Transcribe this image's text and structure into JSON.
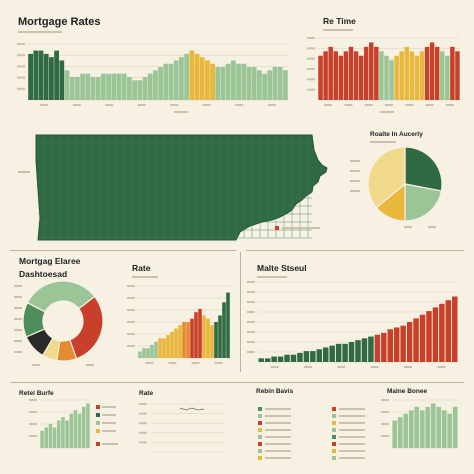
{
  "colors": {
    "dark_green": "#2f6a43",
    "mid_green": "#4f8d5b",
    "light_green": "#9cc597",
    "yellow": "#e8b73c",
    "orange": "#e58a2e",
    "red": "#c9402a",
    "grid": "#ddd6bf",
    "map": "#2f6a43"
  },
  "header": {
    "main_title": "Mortgage Rates",
    "rt_title": "Re Time",
    "donut_title": "Roalte In Aucerly",
    "mid_left_title_1": "Mortgag Elaree",
    "mid_left_title_2": "Dashtoesad",
    "rate_title": "Rate",
    "malte_title": "Malte Stseul",
    "bl_title": "Retel Burfe",
    "rate2_title": "Rate",
    "rebin_title": "Rebin Bavis",
    "br_title": "Malne Bonee"
  },
  "chart_data": [
    {
      "id": "main-bars",
      "type": "bar",
      "title": "Mortgage Rates",
      "values": [
        14,
        15,
        15,
        14,
        13,
        15,
        12,
        9,
        7,
        7,
        8,
        8,
        7,
        7,
        8,
        8,
        8,
        8,
        8,
        7,
        6,
        6,
        7,
        8,
        9,
        10,
        11,
        11,
        12,
        13,
        14,
        15,
        14,
        13,
        12,
        11,
        10,
        10,
        11,
        12,
        11,
        11,
        10,
        10,
        9,
        8,
        9,
        10,
        10,
        9
      ],
      "colors": [
        "dg",
        "dg",
        "dg",
        "dg",
        "dg",
        "dg",
        "dg",
        "lg",
        "lg",
        "lg",
        "lg",
        "lg",
        "lg",
        "lg",
        "lg",
        "lg",
        "lg",
        "lg",
        "lg",
        "lg",
        "lg",
        "lg",
        "lg",
        "lg",
        "lg",
        "lg",
        "lg",
        "lg",
        "lg",
        "lg",
        "lg",
        "y",
        "y",
        "y",
        "y",
        "y",
        "lg",
        "lg",
        "lg",
        "lg",
        "lg",
        "lg",
        "lg",
        "lg",
        "lg",
        "lg",
        "lg",
        "lg",
        "lg",
        "lg"
      ],
      "ylim": [
        0,
        17
      ]
    },
    {
      "id": "rt-bars",
      "type": "bar",
      "title": "Re Time",
      "values": [
        10,
        11,
        12,
        11,
        10,
        11,
        12,
        11,
        10,
        12,
        13,
        12,
        11,
        10,
        9,
        10,
        11,
        12,
        11,
        10,
        11,
        12,
        13,
        12,
        11,
        10,
        12,
        11
      ],
      "colors": [
        "r",
        "r",
        "r",
        "r",
        "r",
        "r",
        "r",
        "r",
        "r",
        "r",
        "r",
        "r",
        "lg",
        "lg",
        "lg",
        "y",
        "y",
        "y",
        "y",
        "y",
        "y",
        "r",
        "r",
        "r",
        "lg",
        "lg",
        "r",
        "r"
      ],
      "ylim": [
        0,
        14
      ]
    },
    {
      "id": "pie",
      "type": "pie",
      "title": "Roalte In Aucerly",
      "values": [
        28,
        22,
        14,
        36
      ],
      "colors": [
        "#2f6a43",
        "#9cc597",
        "#e8b73c",
        "#f0d98a"
      ]
    },
    {
      "id": "donut",
      "type": "pie",
      "values": [
        32,
        30,
        8,
        6,
        10,
        14
      ],
      "colors": [
        "#9cc597",
        "#c9402a",
        "#e58a2e",
        "#f0d98a",
        "#2a2a2a",
        "#4f8d5b"
      ]
    },
    {
      "id": "rate-bars",
      "type": "bar",
      "title": "Rate",
      "values": [
        2,
        3,
        3,
        4,
        5,
        6,
        6,
        7,
        8,
        9,
        10,
        11,
        11,
        12,
        14,
        15,
        13,
        12,
        10,
        11,
        13,
        17,
        20
      ],
      "colors": [
        "lg",
        "lg",
        "lg",
        "lg",
        "lg",
        "y",
        "y",
        "y",
        "y",
        "y",
        "y",
        "o",
        "o",
        "r",
        "r",
        "r",
        "y",
        "y",
        "y",
        "dg",
        "dg",
        "dg",
        "dg"
      ],
      "ylim": [
        0,
        22
      ]
    },
    {
      "id": "malte-bars",
      "type": "bar",
      "title": "Malte Stseul",
      "values": [
        1,
        1,
        1.5,
        1.5,
        2,
        2,
        2.5,
        3,
        3,
        3.5,
        4,
        4.5,
        5,
        5,
        5.5,
        6,
        6.5,
        7,
        7.5,
        8,
        9,
        9.5,
        10,
        11,
        12,
        13,
        14,
        15,
        16,
        17,
        18
      ],
      "colors": [
        "dg",
        "dg",
        "dg",
        "dg",
        "dg",
        "dg",
        "dg",
        "dg",
        "dg",
        "dg",
        "dg",
        "dg",
        "dg",
        "dg",
        "dg",
        "dg",
        "dg",
        "dg",
        "r",
        "r",
        "r",
        "r",
        "r",
        "r",
        "r",
        "r",
        "r",
        "r",
        "r",
        "r",
        "r"
      ],
      "ylim": [
        0,
        22
      ]
    },
    {
      "id": "bl-bars",
      "type": "bar",
      "title": "Retel Burfe",
      "values": [
        5,
        6,
        7,
        6,
        8,
        9,
        8,
        10,
        11,
        10,
        12,
        13
      ],
      "colors": [
        "lg",
        "lg",
        "lg",
        "lg",
        "lg",
        "lg",
        "lg",
        "lg",
        "lg",
        "lg",
        "lg",
        "lg"
      ],
      "ylim": [
        0,
        14
      ]
    },
    {
      "id": "br-bars",
      "type": "bar",
      "title": "Malne Bonee",
      "values": [
        8,
        9,
        10,
        11,
        12,
        11,
        12,
        13,
        12,
        11,
        10,
        12
      ],
      "colors": [
        "lg",
        "lg",
        "lg",
        "lg",
        "lg",
        "lg",
        "lg",
        "lg",
        "lg",
        "lg",
        "lg",
        "lg"
      ],
      "ylim": [
        0,
        14
      ]
    }
  ]
}
